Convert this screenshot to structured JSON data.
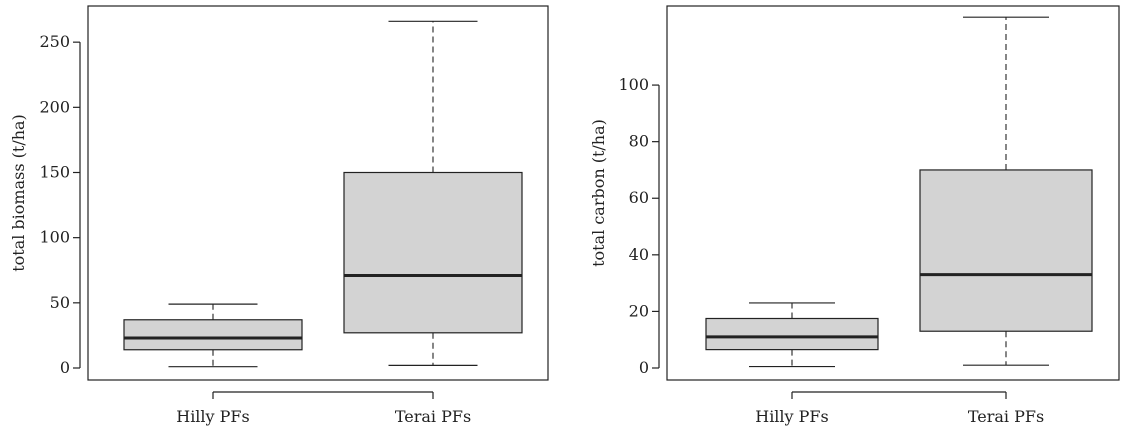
{
  "colors": {
    "box_fill": "#d3d3d3",
    "stroke": "#222222",
    "background": "#ffffff"
  },
  "chart_data": [
    {
      "type": "box",
      "title": "",
      "xlabel": "",
      "ylabel": "total biomass (t/ha)",
      "ylim": [
        0,
        267
      ],
      "yticks": [
        0,
        50,
        100,
        150,
        200,
        250
      ],
      "categories": [
        "Hilly PFs",
        "Terai PFs"
      ],
      "boxes": [
        {
          "category": "Hilly PFs",
          "whisker_low": 1,
          "q1": 14,
          "median": 23,
          "q3": 37,
          "whisker_high": 49
        },
        {
          "category": "Terai PFs",
          "whisker_low": 2,
          "q1": 27,
          "median": 71,
          "q3": 150,
          "whisker_high": 266
        }
      ],
      "grid": false
    },
    {
      "type": "box",
      "title": "",
      "xlabel": "",
      "ylabel": "total carbon (t/ha)",
      "ylim": [
        0,
        123
      ],
      "yticks": [
        0,
        20,
        40,
        60,
        80,
        100
      ],
      "categories": [
        "Hilly PFs",
        "Terai PFs"
      ],
      "boxes": [
        {
          "category": "Hilly PFs",
          "whisker_low": 0.5,
          "q1": 6.5,
          "median": 11,
          "q3": 17.5,
          "whisker_high": 23
        },
        {
          "category": "Terai PFs",
          "whisker_low": 1,
          "q1": 13,
          "median": 33,
          "q3": 70,
          "whisker_high": 124
        }
      ],
      "grid": false
    }
  ]
}
